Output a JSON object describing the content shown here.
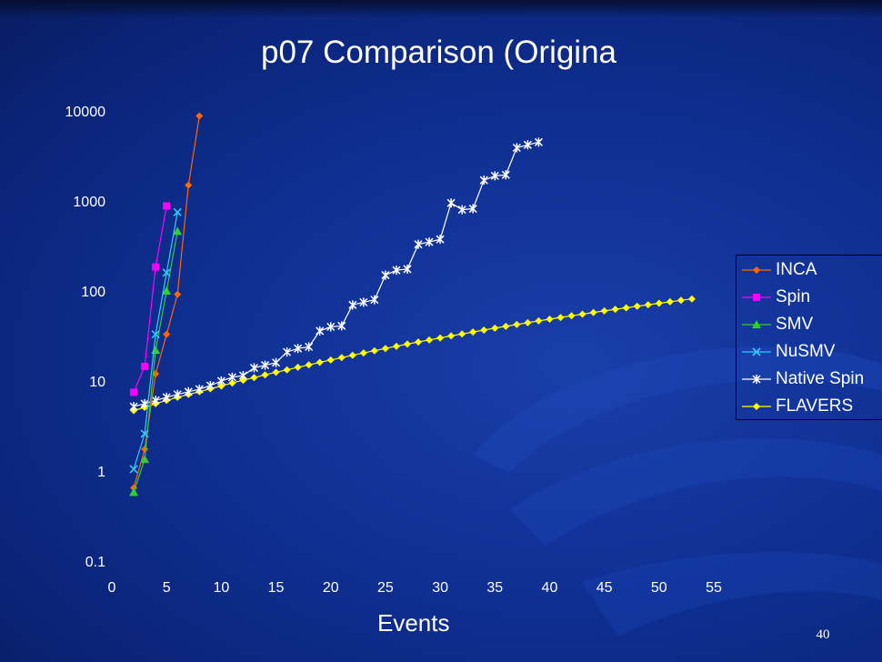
{
  "slide": {
    "title": "p07 Comparison (Origina",
    "page_number": "40"
  },
  "colors": {
    "background": "#0f2f93",
    "text": "#ffffff",
    "INCA": "#ff6600",
    "Spin": "#ff00ff",
    "SMV": "#33cc33",
    "NuSMV": "#33ccff",
    "Native Spin": "#ffffff",
    "FLAVERS": "#ffff00"
  },
  "chart_data": {
    "type": "line",
    "title": "p07 Comparison (Origina",
    "xlabel": "Events",
    "ylabel": "",
    "xlim": [
      0,
      55
    ],
    "ylim": [
      0.1,
      10000
    ],
    "y_scale": "log",
    "x_ticks": [
      "0",
      "5",
      "10",
      "15",
      "20",
      "25",
      "30",
      "35",
      "40",
      "45",
      "50",
      "55"
    ],
    "y_ticks": [
      "0.1",
      "1",
      "10",
      "100",
      "1000",
      "10000"
    ],
    "grid": false,
    "legend_position": "right",
    "series": [
      {
        "name": "INCA",
        "x": [
          2,
          3,
          4,
          5,
          6,
          7,
          8
        ],
        "y": [
          0.65,
          1.75,
          12,
          33,
          92,
          1500,
          8800
        ]
      },
      {
        "name": "Spin",
        "x": [
          2,
          3,
          4,
          5
        ],
        "y": [
          7.5,
          14.5,
          185,
          880
        ]
      },
      {
        "name": "SMV",
        "x": [
          2,
          3,
          4,
          5,
          6
        ],
        "y": [
          0.58,
          1.35,
          22,
          100,
          460
        ]
      },
      {
        "name": "NuSMV",
        "x": [
          2,
          3,
          4,
          5,
          6
        ],
        "y": [
          1.05,
          2.6,
          33,
          160,
          750
        ]
      },
      {
        "name": "Native Spin",
        "x": [
          2,
          3,
          4,
          5,
          6,
          7,
          8,
          9,
          10,
          11,
          12,
          13,
          14,
          15,
          16,
          17,
          18,
          19,
          20,
          21,
          22,
          23,
          24,
          25,
          26,
          27,
          28,
          29,
          30,
          31,
          32,
          33,
          34,
          35,
          36,
          37,
          38,
          39
        ],
        "y": [
          5.2,
          5.6,
          6.1,
          6.6,
          7.1,
          7.6,
          8.1,
          8.9,
          10,
          11,
          11.5,
          14,
          15,
          16,
          21,
          23,
          24,
          36,
          40,
          41,
          70,
          75,
          80,
          150,
          170,
          175,
          330,
          350,
          375,
          950,
          800,
          820,
          1700,
          1900,
          1950,
          3900,
          4200,
          4500
        ]
      },
      {
        "name": "FLAVERS",
        "x": [
          2,
          3,
          4,
          5,
          6,
          7,
          8,
          9,
          10,
          11,
          12,
          13,
          14,
          15,
          16,
          17,
          18,
          19,
          20,
          21,
          22,
          23,
          24,
          25,
          26,
          27,
          28,
          29,
          30,
          31,
          32,
          33,
          34,
          35,
          36,
          37,
          38,
          39,
          40,
          41,
          42,
          43,
          44,
          45,
          46,
          47,
          48,
          49,
          50,
          51,
          52,
          53
        ],
        "y": [
          4.7,
          5.1,
          5.6,
          6.1,
          6.6,
          7.1,
          7.6,
          8.2,
          8.8,
          9.5,
          10.2,
          10.9,
          11.7,
          12.5,
          13.3,
          14.2,
          15.1,
          16.1,
          17.1,
          18.2,
          19.3,
          20.5,
          21.7,
          23,
          24.3,
          25.7,
          27.1,
          28.6,
          30.1,
          31.7,
          33.3,
          35,
          36.8,
          38.6,
          40.5,
          42.4,
          44.4,
          46.5,
          48.6,
          50.8,
          53,
          55.3,
          57.7,
          60.1,
          62.6,
          65.1,
          67.7,
          70.4,
          73.1,
          75.9,
          78.7,
          81.6
        ]
      }
    ]
  }
}
